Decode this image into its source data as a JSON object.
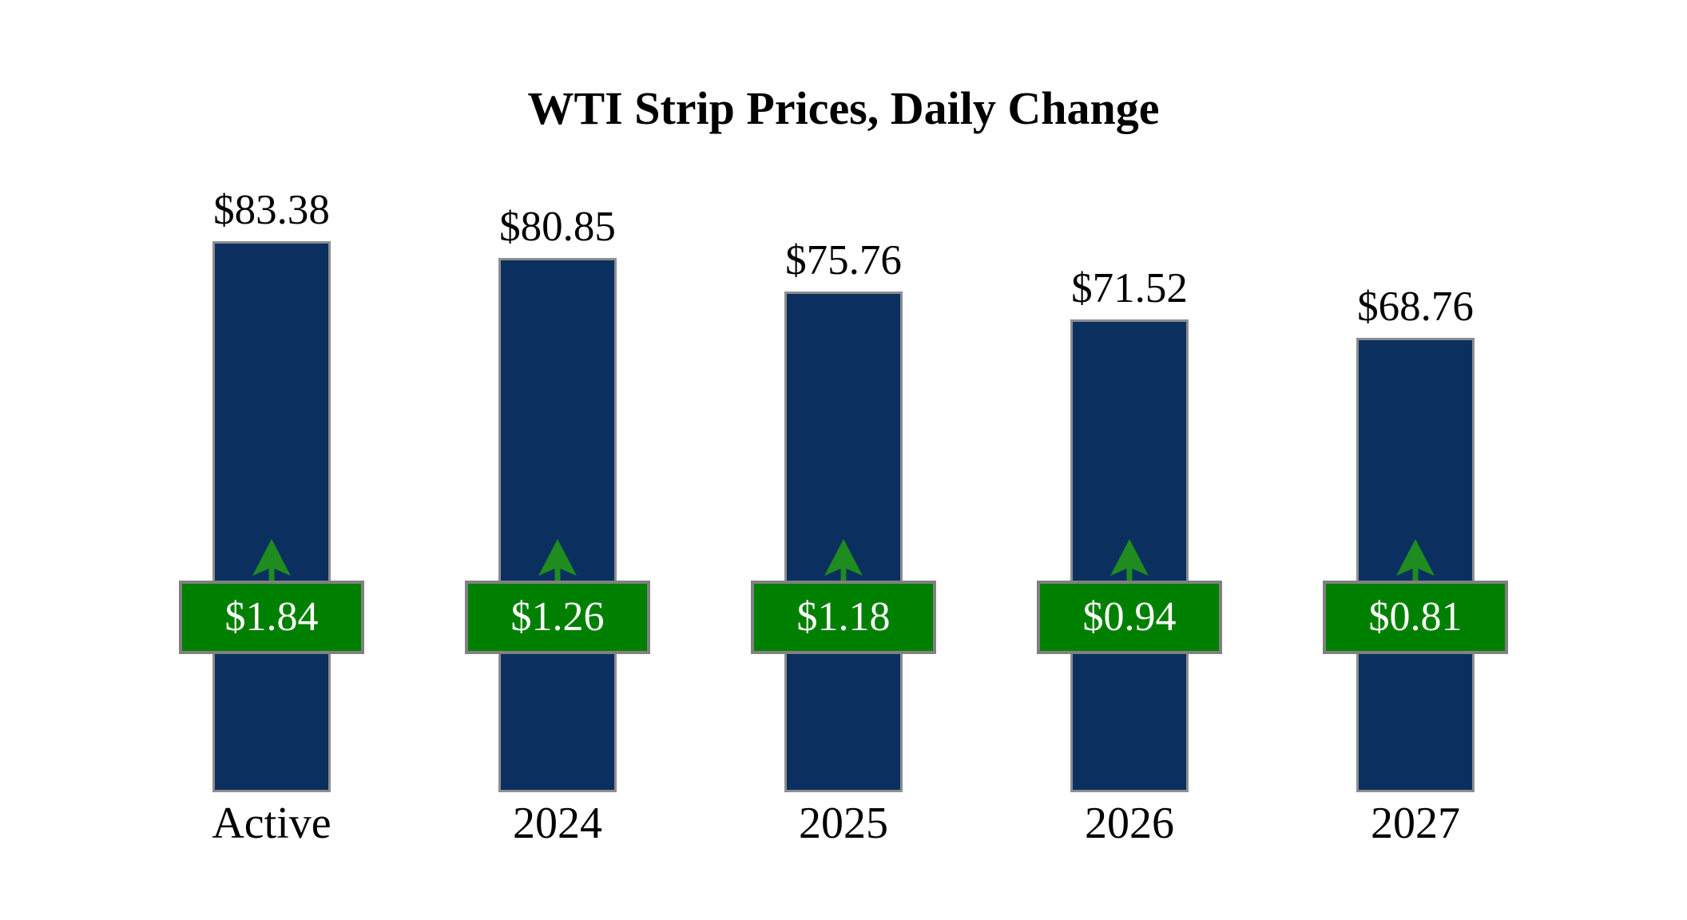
{
  "page": {
    "background": "#ffffff"
  },
  "chart_data": {
    "type": "bar",
    "title": "WTI Strip Prices, Daily Change",
    "categories": [
      "Active",
      "2024",
      "2025",
      "2026",
      "2027"
    ],
    "series": [
      {
        "name": "strip_price",
        "values": [
          83.38,
          80.85,
          75.76,
          71.52,
          68.76
        ],
        "labels": [
          "$83.38",
          "$80.85",
          "$75.76",
          "$71.52",
          "$68.76"
        ]
      },
      {
        "name": "daily_change",
        "values": [
          1.84,
          1.26,
          1.18,
          0.94,
          0.81
        ],
        "labels": [
          "$1.84",
          "$1.26",
          "$1.18",
          "$0.94",
          "$0.81"
        ],
        "direction": "up"
      }
    ],
    "ylim": [
      0,
      100
    ],
    "grid": false,
    "legend": "none",
    "colors": {
      "bar_fill": "#0b3060",
      "bar_border": "#8e8e8e",
      "badge_fill": "#008000",
      "badge_border": "#808080",
      "badge_text": "#ffffff",
      "arrow": "#1e8c1e",
      "text": "#000000"
    }
  }
}
